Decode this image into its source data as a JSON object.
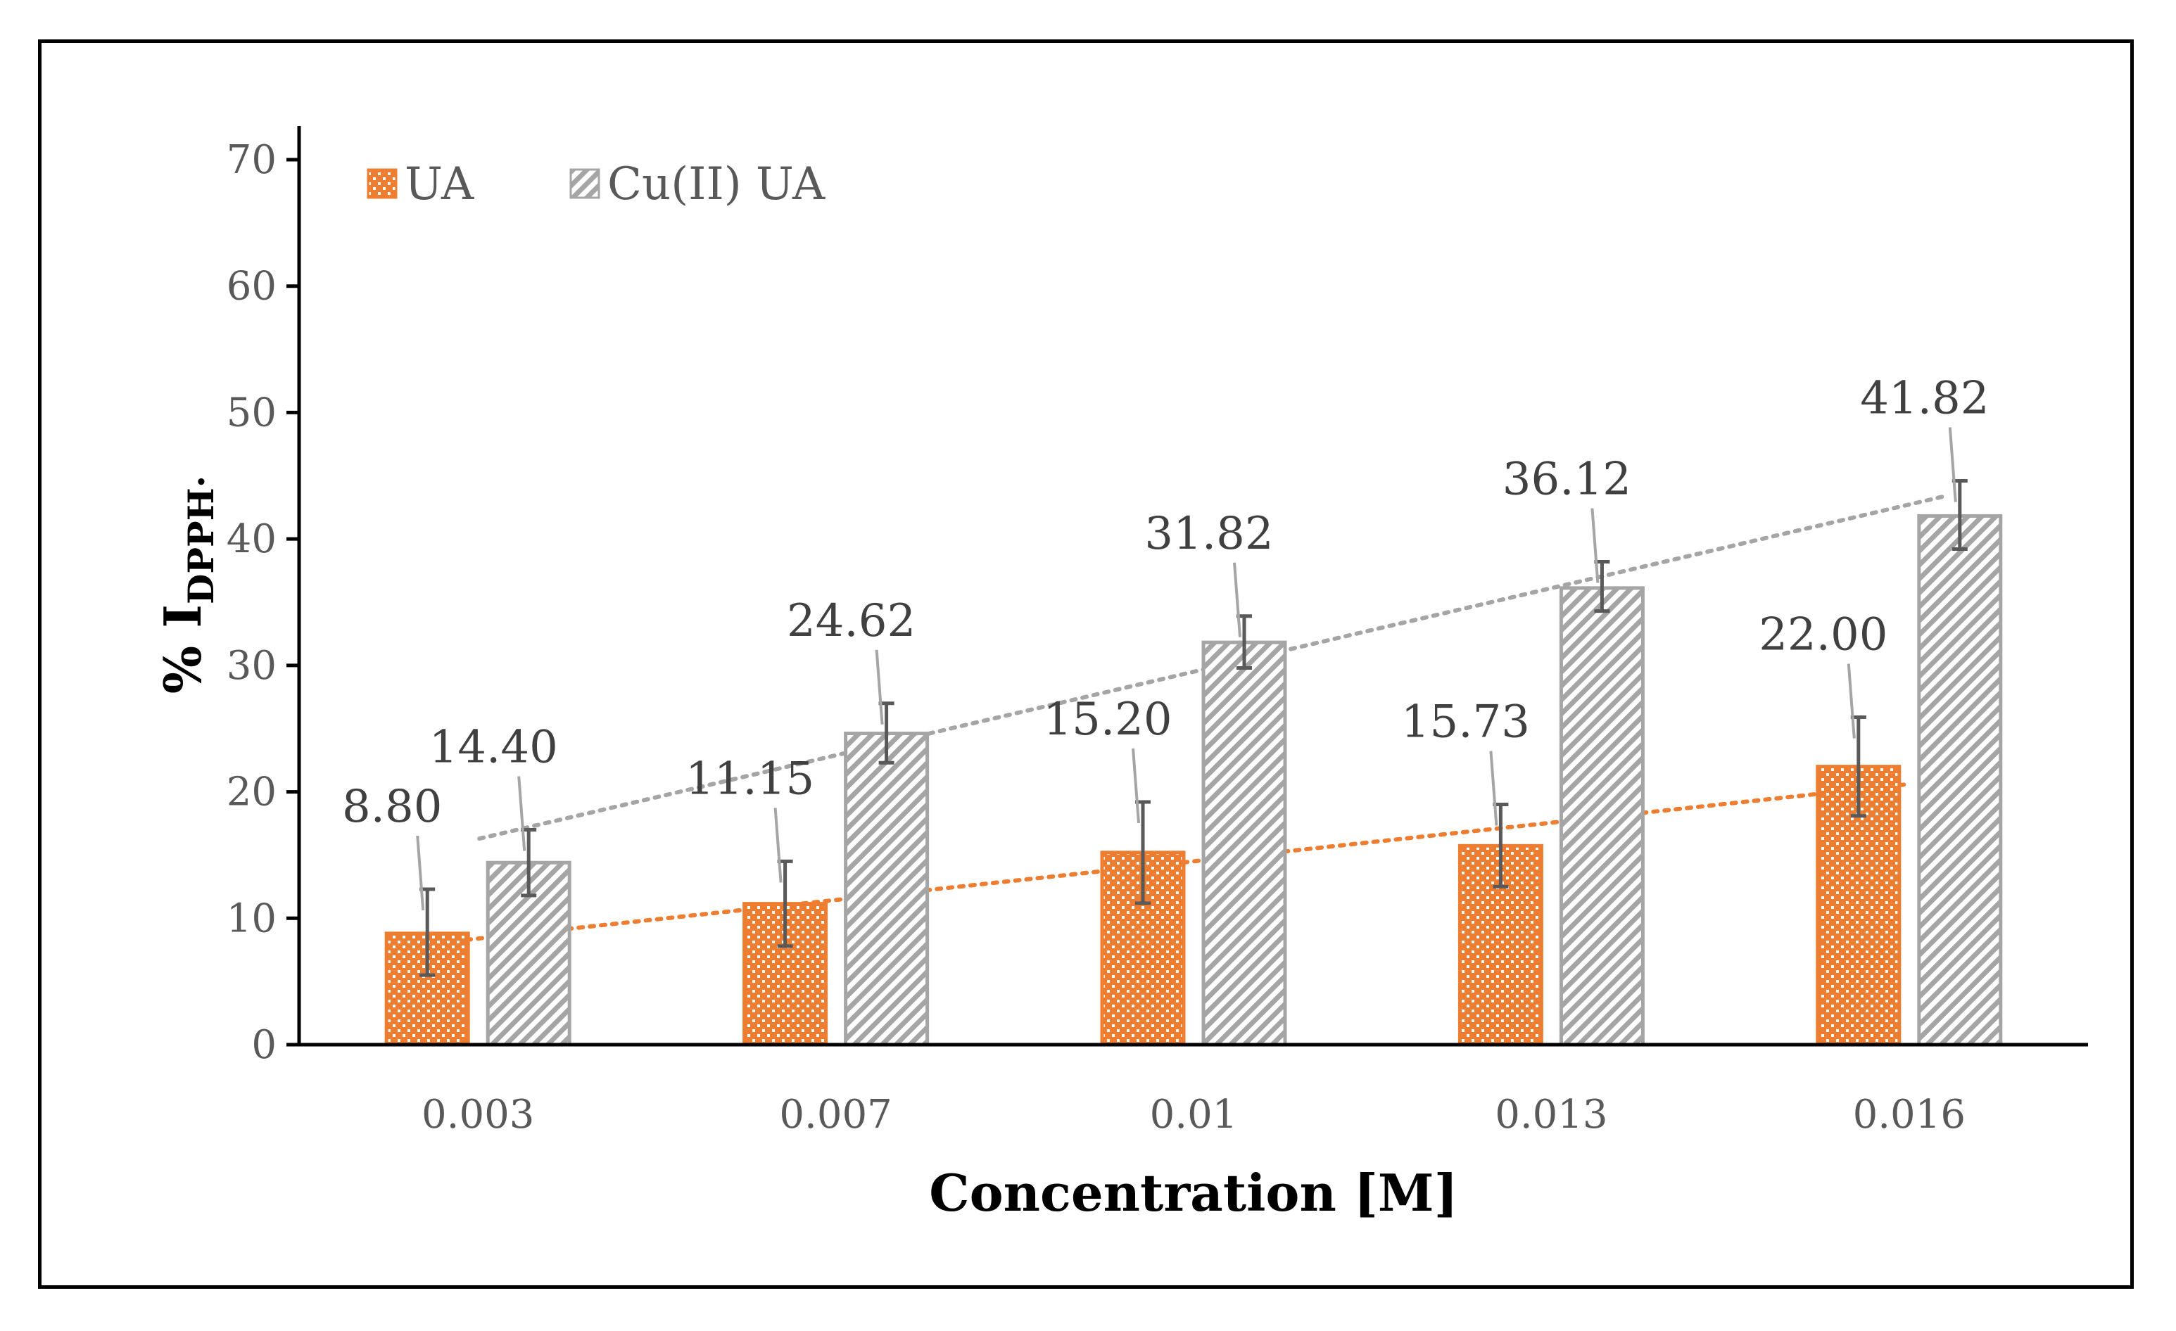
{
  "chart_data": {
    "type": "bar",
    "title": "",
    "xlabel": "Concentration [M]",
    "ylabel": {
      "prefix": "% I",
      "subscript": "DPPH·"
    },
    "ylim": [
      0,
      70
    ],
    "yticks": [
      "0",
      "10",
      "20",
      "30",
      "40",
      "50",
      "60",
      "70"
    ],
    "grid": false,
    "legend_position": "top-left",
    "categories": [
      "0.003",
      "0.007",
      "0.01",
      "0.013",
      "0.016"
    ],
    "series": [
      {
        "name": "UA",
        "color": "#ED7D31",
        "pattern": "dots",
        "values": [
          8.8,
          11.15,
          15.2,
          15.73,
          22.0
        ],
        "labels": [
          "8.80",
          "11.15",
          "15.20",
          "15.73",
          "22.00"
        ],
        "error_low": [
          5.5,
          7.8,
          11.2,
          12.5,
          18.1
        ],
        "error_high": [
          12.3,
          14.5,
          19.2,
          19.0,
          25.9
        ],
        "trendline": {
          "style": "dotted",
          "start": 8.2,
          "end": 20.6
        }
      },
      {
        "name": "Cu(II) UA",
        "color": "#A5A5A5",
        "pattern": "diagonal",
        "values": [
          14.4,
          24.62,
          31.82,
          36.12,
          41.82
        ],
        "labels": [
          "14.40",
          "24.62",
          "31.82",
          "36.12",
          "41.82"
        ],
        "error_low": [
          11.8,
          22.3,
          29.8,
          34.3,
          39.2
        ],
        "error_high": [
          17.0,
          27.0,
          33.9,
          38.2,
          44.6
        ],
        "trendline": {
          "style": "dotted",
          "start": 16.3,
          "end": 43.4
        }
      }
    ]
  }
}
